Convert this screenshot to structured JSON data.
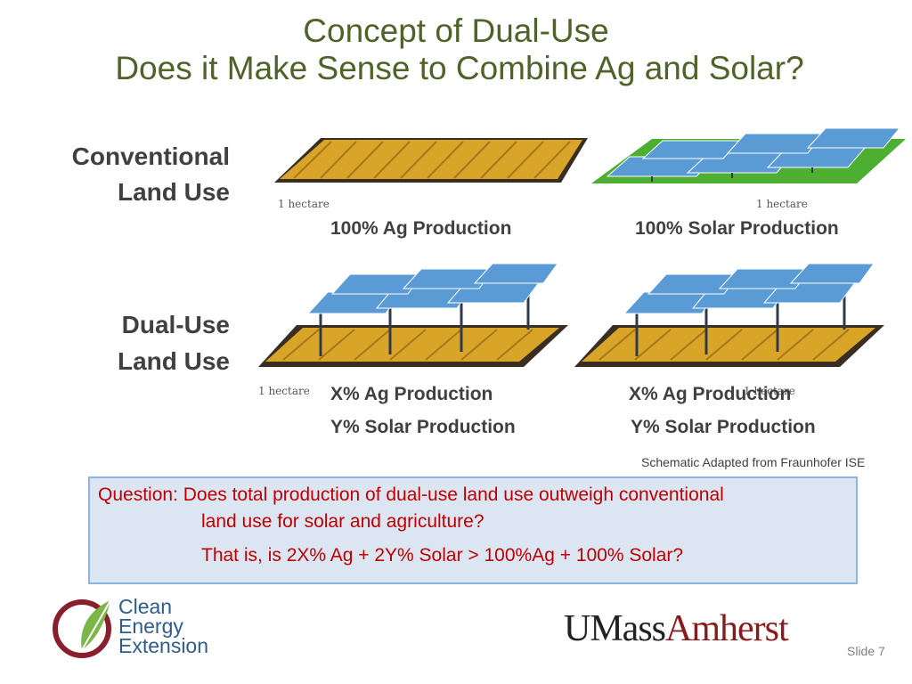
{
  "slide": {
    "title_line1": "Concept of Dual-Use",
    "title_line2": "Does it Make Sense to Combine Ag and Solar?"
  },
  "rows": {
    "conventional_line1": "Conventional",
    "conventional_line2": "Land Use",
    "dualuse_line1": "Dual-Use",
    "dualuse_line2": "Land Use"
  },
  "images": {
    "hectare_label": "1 hectare"
  },
  "captions": {
    "ag_only": "100% Ag Production",
    "solar_only": "100% Solar Production",
    "dual_left_ag": "X% Ag Production",
    "dual_left_solar": "Y% Solar Production",
    "dual_right_ag": "X% Ag Production",
    "dual_right_solar": "Y% Solar Production"
  },
  "source_note": "Schematic Adapted from Fraunhofer ISE",
  "question": {
    "line1": "Question:  Does total production of dual-use land use outweigh conventional",
    "line2": "land use for solar and agriculture?",
    "line3": "That is, is 2X% Ag + 2Y% Solar   >    100%Ag + 100% Solar?"
  },
  "footer": {
    "logo_line1": "Clean",
    "logo_line2": "Energy",
    "logo_line3": "Extension",
    "umass_part1": "UMass",
    "umass_part2": "Amherst",
    "slide_number": "Slide 7"
  },
  "colors": {
    "title": "#4f6228",
    "question_text": "#c00000",
    "question_bg": "#dce6f2",
    "question_border": "#8eb4e3",
    "crop": "#d9a528",
    "panel": "#5b9bd5",
    "grass": "#4caf32",
    "umass_maroon": "#881c1c"
  }
}
